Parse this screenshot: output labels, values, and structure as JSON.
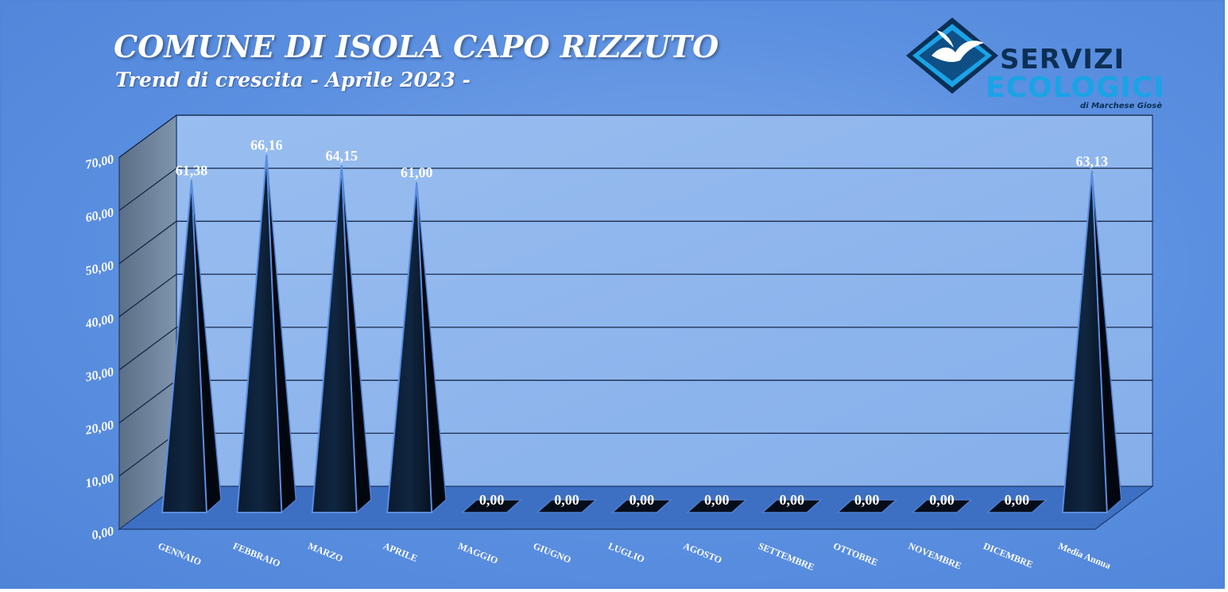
{
  "header": {
    "title": "COMUNE DI ISOLA CAPO RIZZUTO",
    "subtitle": "Trend di crescita - Aprile 2023 -"
  },
  "logo": {
    "line1": "SERVIZI",
    "line2": "ECOLOGICI",
    "line3": "di Marchese Giosè",
    "icon": "seagull-icon",
    "color_dark": "#0c2f55",
    "color_light": "#1aa3e6"
  },
  "colors": {
    "background": "#5b8fe0",
    "plot_wall": "#8fb6ec",
    "bar_dark": "#081425",
    "bar_edge": "#4f7fd0"
  },
  "chart_data": {
    "type": "bar",
    "shape": "pyramid-3d",
    "categories": [
      "GENNAIO",
      "FEBBRAIO",
      "MARZO",
      "APRILE",
      "MAGGIO",
      "GIUGNO",
      "LUGLIO",
      "AGOSTO",
      "SETTEMBRE",
      "OTTOBRE",
      "NOVEMBRE",
      "DICEMBRE",
      "Media Annua"
    ],
    "values": [
      61.38,
      66.16,
      64.15,
      61.0,
      0,
      0,
      0,
      0,
      0,
      0,
      0,
      0,
      63.13
    ],
    "value_labels": [
      "61,38",
      "66,16",
      "64,15",
      "61,00",
      "0,00",
      "0,00",
      "0,00",
      "0,00",
      "0,00",
      "0,00",
      "0,00",
      "0,00",
      "63,13"
    ],
    "ylim": [
      0,
      70
    ],
    "yticks": [
      0,
      10,
      20,
      30,
      40,
      50,
      60,
      70
    ],
    "ytick_labels": [
      "0,00",
      "10,00",
      "20,00",
      "30,00",
      "40,00",
      "50,00",
      "60,00",
      "70,00"
    ],
    "grid": true,
    "legend": "none"
  }
}
